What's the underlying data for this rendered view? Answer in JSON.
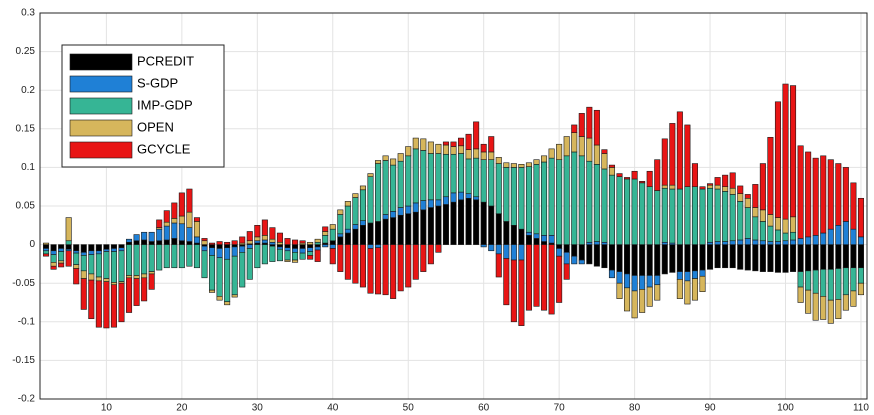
{
  "chart_data": {
    "type": "bar",
    "stacked": true,
    "grid": true,
    "legend": "northwest",
    "x": [
      2,
      3,
      4,
      5,
      6,
      7,
      8,
      9,
      10,
      11,
      12,
      13,
      14,
      15,
      16,
      17,
      18,
      19,
      20,
      21,
      22,
      23,
      24,
      25,
      26,
      27,
      28,
      29,
      30,
      31,
      32,
      33,
      34,
      35,
      36,
      37,
      38,
      39,
      40,
      41,
      42,
      43,
      44,
      45,
      46,
      47,
      48,
      49,
      50,
      51,
      52,
      53,
      54,
      55,
      56,
      57,
      58,
      59,
      60,
      61,
      62,
      63,
      64,
      65,
      66,
      67,
      68,
      69,
      70,
      71,
      72,
      73,
      74,
      75,
      76,
      77,
      78,
      79,
      80,
      81,
      82,
      83,
      84,
      85,
      86,
      87,
      88,
      89,
      90,
      91,
      92,
      93,
      94,
      95,
      96,
      97,
      98,
      99,
      100,
      101,
      102,
      103,
      104,
      105,
      106,
      107,
      108,
      109,
      110
    ],
    "xlim": [
      1.2,
      110.8
    ],
    "xticks": [
      10,
      20,
      30,
      40,
      50,
      60,
      70,
      80,
      90,
      100,
      110
    ],
    "ylim": [
      -0.2,
      0.3
    ],
    "yticks": [
      -0.2,
      -0.15,
      -0.1,
      -0.05,
      0,
      0.05,
      0.1,
      0.15,
      0.2,
      0.25,
      0.3
    ],
    "series": [
      {
        "name": "PCREDIT",
        "color": "#000000",
        "values": [
          -0.005,
          -0.008,
          -0.005,
          -0.006,
          -0.008,
          -0.01,
          -0.008,
          -0.008,
          -0.006,
          -0.005,
          -0.004,
          0.003,
          0.005,
          0.006,
          0.004,
          0.005,
          0.006,
          0.008,
          0.005,
          0.004,
          0.002,
          -0.002,
          -0.004,
          -0.005,
          -0.004,
          -0.003,
          -0.002,
          0.001,
          0.002,
          0.002,
          -0.002,
          -0.003,
          -0.004,
          -0.005,
          -0.005,
          -0.004,
          -0.003,
          0.002,
          0.005,
          0.01,
          0.015,
          0.02,
          0.025,
          0.028,
          0.03,
          0.033,
          0.035,
          0.038,
          0.04,
          0.042,
          0.045,
          0.048,
          0.05,
          0.052,
          0.055,
          0.058,
          0.06,
          0.058,
          0.055,
          0.05,
          0.04,
          0.03,
          0.025,
          0.02,
          0.012,
          0.008,
          0.004,
          0.002,
          -0.005,
          -0.01,
          -0.015,
          -0.02,
          -0.025,
          -0.028,
          -0.03,
          -0.033,
          -0.035,
          -0.038,
          -0.04,
          -0.04,
          -0.04,
          -0.04,
          -0.038,
          -0.036,
          -0.035,
          -0.035,
          -0.034,
          -0.033,
          -0.032,
          -0.03,
          -0.03,
          -0.03,
          -0.032,
          -0.033,
          -0.034,
          -0.035,
          -0.035,
          -0.036,
          -0.036,
          -0.035,
          -0.035,
          -0.034,
          -0.033,
          -0.032,
          -0.032,
          -0.031,
          -0.03,
          -0.03,
          -0.03
        ]
      },
      {
        "name": "S-GDP",
        "color": "#1f80d6",
        "values": [
          -0.003,
          -0.005,
          -0.004,
          -0.002,
          -0.003,
          -0.004,
          -0.005,
          -0.004,
          -0.003,
          -0.004,
          -0.004,
          0.004,
          0.008,
          0.01,
          0.012,
          0.015,
          0.018,
          0.02,
          0.022,
          0.018,
          0.008,
          -0.006,
          -0.01,
          -0.012,
          -0.015,
          -0.012,
          -0.008,
          -0.005,
          0.003,
          0.004,
          0.003,
          -0.003,
          -0.004,
          -0.005,
          -0.006,
          -0.005,
          -0.004,
          -0.003,
          -0.005,
          0.004,
          0.005,
          0.006,
          0.006,
          -0.005,
          -0.004,
          0.006,
          0.008,
          0.01,
          0.01,
          0.012,
          0.012,
          0.01,
          0.008,
          0.01,
          0.012,
          0.01,
          0.006,
          0.004,
          -0.003,
          -0.008,
          -0.012,
          -0.018,
          -0.02,
          -0.02,
          0.004,
          0.006,
          0.008,
          0.01,
          -0.01,
          -0.015,
          -0.01,
          -0.005,
          0.003,
          0.004,
          0.003,
          -0.01,
          -0.015,
          -0.018,
          -0.02,
          -0.018,
          -0.015,
          -0.012,
          0.003,
          0.002,
          -0.01,
          -0.012,
          -0.01,
          -0.008,
          0.003,
          0.004,
          0.004,
          0.005,
          0.006,
          0.008,
          0.006,
          0.005,
          0.004,
          0.004,
          0.005,
          0.006,
          0.008,
          0.01,
          0.012,
          0.015,
          0.02,
          0.025,
          0.03,
          0.02,
          0.01
        ]
      },
      {
        "name": "IMP-GDP",
        "color": "#36b595",
        "values": [
          -0.004,
          -0.01,
          -0.012,
          0.005,
          -0.015,
          -0.02,
          -0.025,
          -0.03,
          -0.035,
          -0.04,
          -0.04,
          -0.04,
          -0.04,
          -0.038,
          -0.035,
          -0.033,
          -0.03,
          -0.03,
          -0.03,
          -0.028,
          -0.03,
          -0.035,
          -0.045,
          -0.05,
          -0.055,
          -0.05,
          -0.045,
          -0.04,
          -0.03,
          -0.025,
          -0.02,
          -0.015,
          -0.012,
          -0.01,
          -0.008,
          -0.005,
          0.003,
          0.01,
          0.015,
          0.025,
          0.03,
          0.035,
          0.04,
          0.06,
          0.075,
          0.07,
          0.06,
          0.06,
          0.065,
          0.07,
          0.065,
          0.06,
          0.06,
          0.055,
          0.05,
          0.05,
          0.045,
          0.05,
          0.055,
          0.06,
          0.065,
          0.07,
          0.075,
          0.08,
          0.085,
          0.09,
          0.095,
          0.1,
          0.11,
          0.115,
          0.12,
          0.115,
          0.105,
          0.1,
          0.095,
          0.09,
          0.088,
          0.085,
          0.085,
          0.08,
          0.075,
          0.07,
          0.07,
          0.07,
          0.072,
          0.075,
          0.075,
          0.072,
          0.07,
          0.068,
          0.065,
          0.06,
          0.05,
          0.04,
          0.03,
          0.025,
          0.02,
          0.015,
          0.01,
          0.01,
          -0.02,
          -0.025,
          -0.03,
          -0.035,
          -0.04,
          -0.04,
          -0.035,
          -0.03,
          -0.02
        ]
      },
      {
        "name": "OPEN",
        "color": "#d6b65c",
        "values": [
          0.002,
          -0.005,
          -0.003,
          0.03,
          -0.005,
          -0.01,
          -0.008,
          -0.005,
          -0.004,
          -0.003,
          -0.002,
          -0.003,
          -0.004,
          -0.005,
          -0.003,
          0.002,
          0.005,
          0.006,
          0.01,
          0.02,
          0.02,
          0.005,
          -0.003,
          -0.005,
          -0.004,
          -0.003,
          0.002,
          0.004,
          0.005,
          0.006,
          0.004,
          0.003,
          -0.002,
          -0.003,
          0.002,
          0.003,
          0.004,
          0.005,
          0.006,
          0.006,
          0.006,
          0.005,
          0.005,
          0.004,
          0.004,
          0.006,
          0.008,
          0.01,
          0.012,
          0.014,
          0.015,
          0.015,
          0.012,
          0.012,
          0.01,
          0.01,
          0.012,
          0.012,
          0.01,
          0.01,
          0.008,
          0.006,
          0.005,
          0.004,
          0.005,
          0.006,
          0.008,
          0.012,
          0.02,
          0.025,
          0.025,
          0.025,
          0.03,
          0.025,
          0.02,
          0.01,
          -0.02,
          -0.03,
          -0.035,
          -0.03,
          -0.025,
          -0.02,
          0.004,
          0.005,
          -0.025,
          -0.03,
          -0.028,
          -0.02,
          0.004,
          0.005,
          0.006,
          0.008,
          0.01,
          0.012,
          0.012,
          0.015,
          0.015,
          0.016,
          0.018,
          0.02,
          -0.02,
          -0.03,
          -0.035,
          -0.03,
          -0.03,
          -0.025,
          -0.02,
          -0.02,
          -0.015
        ]
      },
      {
        "name": "GCYCLE",
        "color": "#e81515",
        "values": [
          -0.003,
          -0.004,
          -0.005,
          -0.02,
          -0.02,
          -0.04,
          -0.05,
          -0.06,
          -0.06,
          -0.055,
          -0.05,
          -0.045,
          -0.035,
          -0.03,
          -0.02,
          0.01,
          0.015,
          0.02,
          0.03,
          0.03,
          0.005,
          0.003,
          0.002,
          0.004,
          0.003,
          0.005,
          0.008,
          0.012,
          0.015,
          0.02,
          0.015,
          0.012,
          0.008,
          0.006,
          0.003,
          -0.005,
          -0.015,
          0.006,
          -0.02,
          -0.035,
          -0.045,
          -0.05,
          -0.055,
          -0.058,
          -0.06,
          -0.065,
          -0.07,
          -0.06,
          -0.055,
          -0.045,
          -0.035,
          -0.025,
          -0.01,
          0.004,
          0.006,
          0.01,
          0.02,
          0.035,
          0.01,
          0.02,
          -0.03,
          -0.06,
          -0.08,
          -0.085,
          -0.085,
          -0.08,
          -0.085,
          -0.09,
          -0.06,
          -0.02,
          0.01,
          0.03,
          0.04,
          0.045,
          0.005,
          0.003,
          0.004,
          0.002,
          0.01,
          0.002,
          0.02,
          0.04,
          0.06,
          0.08,
          0.1,
          0.08,
          0.03,
          0.003,
          0.002,
          0.01,
          0.015,
          0.02,
          0.01,
          0.005,
          0.03,
          0.06,
          0.1,
          0.15,
          0.175,
          0.17,
          0.12,
          0.11,
          0.1,
          0.1,
          0.09,
          0.08,
          0.07,
          0.06,
          0.05
        ]
      }
    ]
  }
}
